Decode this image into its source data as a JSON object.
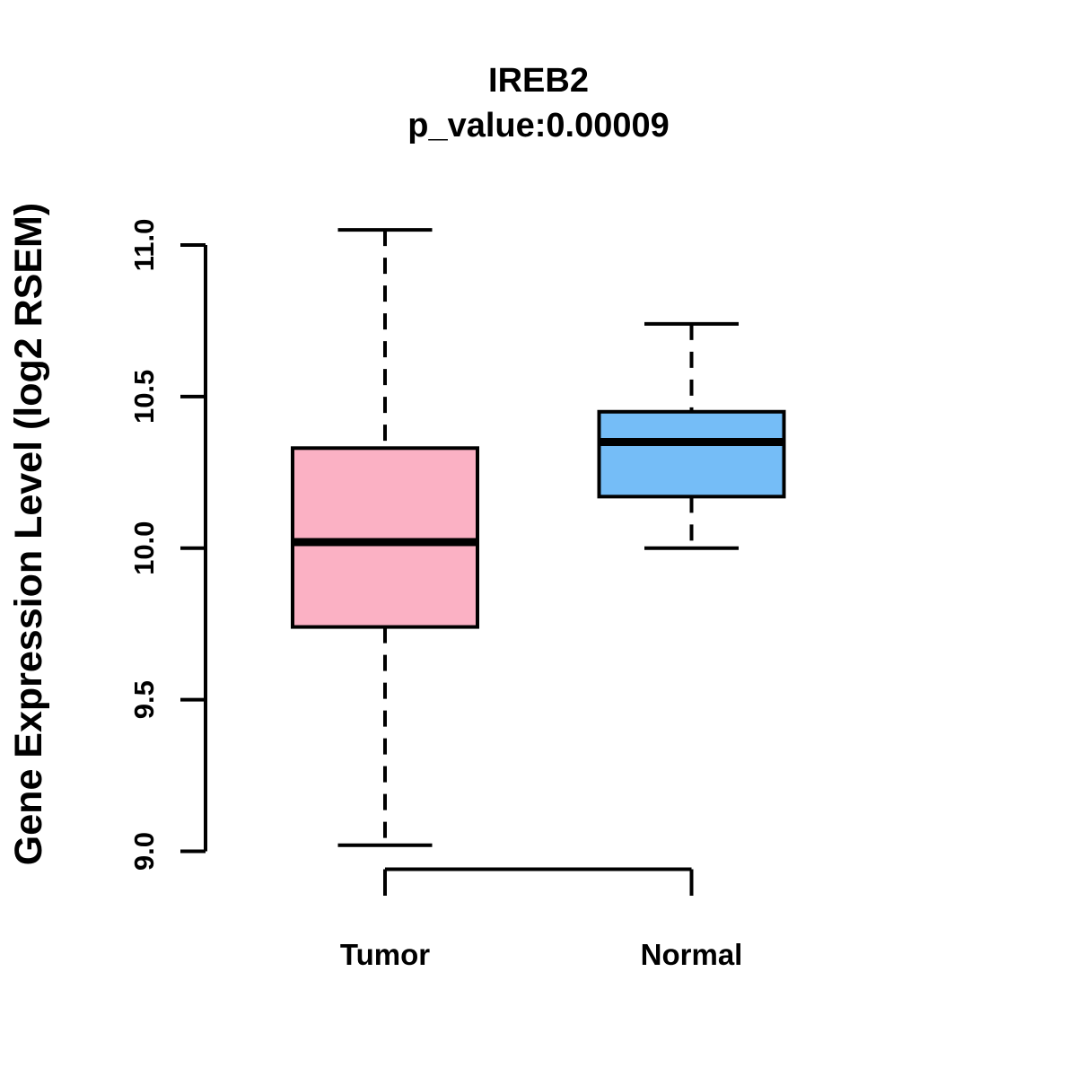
{
  "chart_data": {
    "type": "boxplot",
    "title": "IREB2",
    "subtitle": "p_value:0.00009",
    "gene": "IREB2",
    "p_value": "0.00009",
    "ylabel": "Gene Expression Level (log2 RSEM)",
    "xlabel": "",
    "ylim": [
      9.0,
      11.05
    ],
    "yticks": [
      "9.0",
      "9.5",
      "10.0",
      "10.5",
      "11.0"
    ],
    "categories": [
      "Tumor",
      "Normal"
    ],
    "grid": false,
    "legend_position": "none",
    "series": [
      {
        "name": "Tumor",
        "fill_color": "#FBB1C4",
        "stroke_color": "#000000",
        "whisker_low": 9.02,
        "q1": 9.74,
        "median": 10.02,
        "q3": 10.33,
        "whisker_high": 11.05
      },
      {
        "name": "Normal",
        "fill_color": "#75BDF7",
        "stroke_color": "#000000",
        "whisker_low": 10.0,
        "q1": 10.17,
        "median": 10.35,
        "q3": 10.45,
        "whisker_high": 10.74
      }
    ]
  }
}
